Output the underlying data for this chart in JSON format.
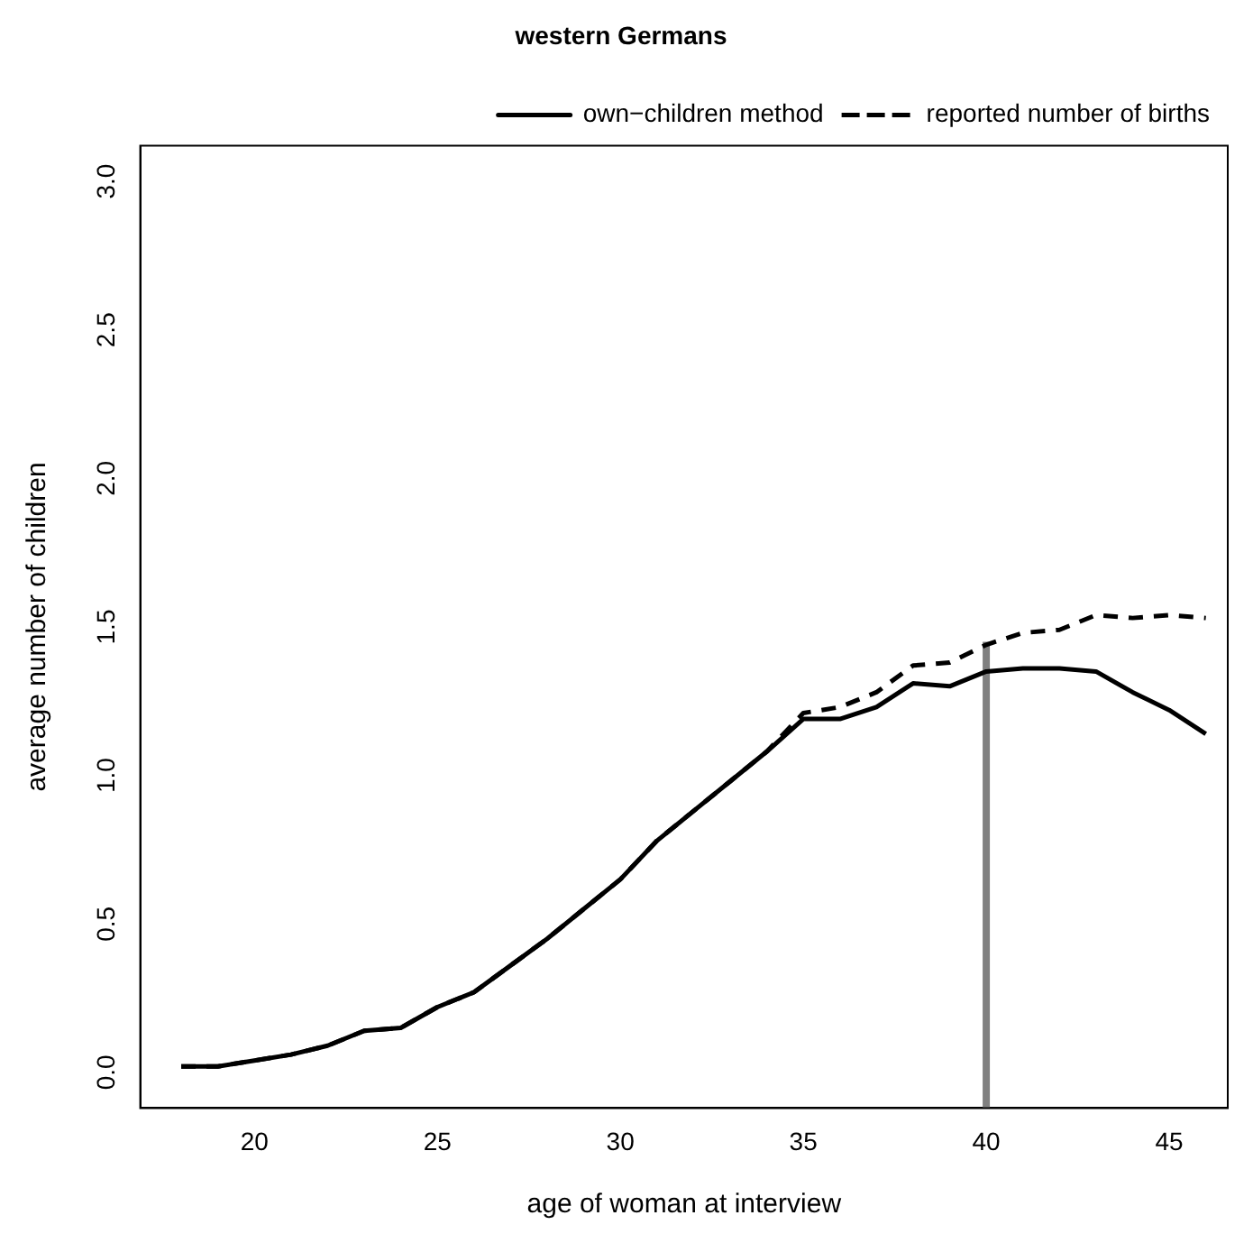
{
  "chart_data": {
    "type": "line",
    "title": "western Germans",
    "xlabel": "age of woman at interview",
    "ylabel": "average number of children",
    "xlim": [
      16.88,
      46.6
    ],
    "ylim": [
      -0.12,
      3.12
    ],
    "xticks": [
      20,
      25,
      30,
      35,
      40,
      45
    ],
    "yticks": [
      {
        "value": 0,
        "label": "0.0"
      },
      {
        "value": 0.5,
        "label": "0.5"
      },
      {
        "value": 1,
        "label": "1.0"
      },
      {
        "value": 1.5,
        "label": "1.5"
      },
      {
        "value": 2,
        "label": "2.0"
      },
      {
        "value": 2.5,
        "label": "2.5"
      },
      {
        "value": 3,
        "label": "3.0"
      }
    ],
    "grid": false,
    "legend": "top right",
    "marker": "none",
    "series": [
      {
        "name": "own−children method",
        "color": "#000000",
        "line_style": "solid",
        "x": [
          18,
          19,
          20,
          21,
          22,
          23,
          24,
          25,
          26,
          27,
          28,
          29,
          30,
          31,
          32,
          33,
          34,
          35,
          36,
          37,
          38,
          39,
          40,
          41,
          42,
          43,
          44,
          45,
          46
        ],
        "values": [
          0.02,
          0.02,
          0.04,
          0.06,
          0.09,
          0.14,
          0.15,
          0.22,
          0.27,
          0.36,
          0.45,
          0.55,
          0.65,
          0.78,
          0.88,
          0.98,
          1.08,
          1.19,
          1.19,
          1.23,
          1.31,
          1.3,
          1.35,
          1.36,
          1.36,
          1.35,
          1.28,
          1.22,
          1.14
        ]
      },
      {
        "name": "reported number of births",
        "color": "#000000",
        "line_style": "dashed",
        "x": [
          18,
          19,
          20,
          21,
          22,
          23,
          24,
          25,
          26,
          27,
          28,
          29,
          30,
          31,
          32,
          33,
          34,
          35,
          36,
          37,
          38,
          39,
          40,
          41,
          42,
          43,
          44,
          45,
          46
        ],
        "values": [
          0.02,
          0.02,
          0.04,
          0.06,
          0.09,
          0.14,
          0.15,
          0.22,
          0.27,
          0.36,
          0.45,
          0.55,
          0.65,
          0.78,
          0.88,
          0.98,
          1.08,
          1.21,
          1.23,
          1.28,
          1.37,
          1.38,
          1.44,
          1.48,
          1.49,
          1.54,
          1.53,
          1.54,
          1.53
        ]
      },
      {
        "color": "#808080",
        "line_style": "solid",
        "x": [
          40,
          40
        ],
        "values": [
          -0.12,
          1.45
        ]
      }
    ]
  }
}
